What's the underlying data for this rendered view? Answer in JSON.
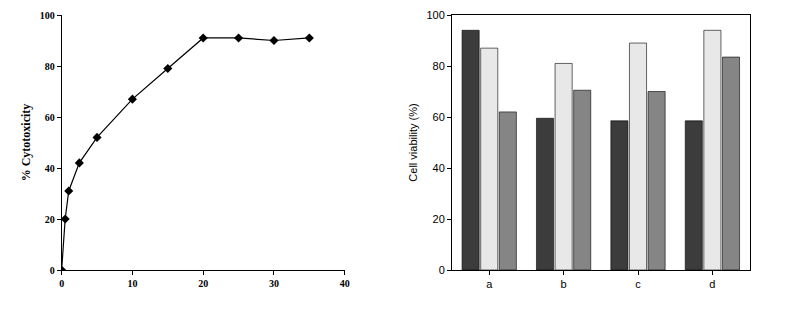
{
  "chart_data": [
    {
      "type": "line",
      "y_label": "% Cytotoxicity",
      "x": [
        0,
        0.5,
        1,
        2.5,
        5,
        10,
        15,
        20,
        25,
        30,
        35
      ],
      "values": [
        0,
        20,
        31,
        42,
        52,
        67,
        79,
        91,
        91,
        90,
        91
      ],
      "color": "#000000",
      "marker": "diamond",
      "line_style": "solid",
      "xlim": [
        0,
        40
      ],
      "xticks": [
        0,
        10,
        20,
        30,
        40
      ],
      "ylim": [
        0,
        100
      ],
      "yticks": [
        0,
        20,
        40,
        60,
        80,
        100
      ],
      "grid": false
    },
    {
      "type": "bar",
      "y_label": "Cell viability (%)",
      "categories": [
        "a",
        "b",
        "c",
        "d"
      ],
      "series": [
        {
          "color": "#3c3c3c",
          "values": [
            94,
            59.5,
            58.5,
            58.5
          ]
        },
        {
          "color": "#e8e8e8",
          "values": [
            87,
            81,
            89,
            94
          ]
        },
        {
          "color": "#858585",
          "values": [
            62,
            70.5,
            70,
            83.5
          ]
        }
      ],
      "ylim": [
        0,
        100
      ],
      "yticks": [
        0,
        20,
        40,
        60,
        80,
        100
      ],
      "grid": false
    }
  ]
}
